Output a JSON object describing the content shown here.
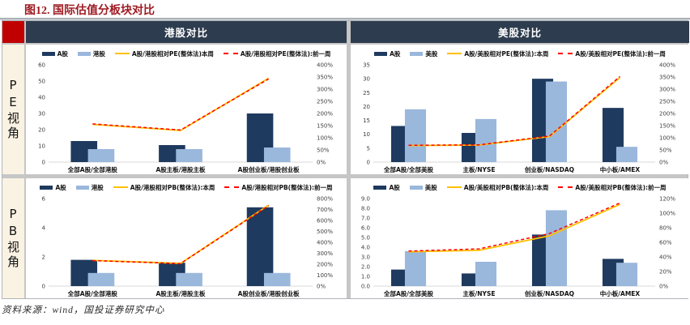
{
  "title": "图12. 国际估值分板块对比",
  "footer": "资料来源：wind，国投证券研究中心",
  "headers": {
    "left": "港股对比",
    "right": "美股对比"
  },
  "side_labels": {
    "top": "PE视角",
    "bottom": "PB视角"
  },
  "colors": {
    "a_share_bar": "#1f3a5f",
    "overseas_bar": "#9ab7dc",
    "line_current": "#ffc000",
    "line_previous": "#ff0000",
    "header_bg": "#2d3c4e",
    "accent_red": "#c00000",
    "sidebar_bg": "#faf3e3",
    "title_red": "#9e1b23"
  },
  "chart_data": [
    {
      "type": "bar",
      "panel": "pe_hk",
      "categories": [
        "全部A股/全部港股",
        "A股主板/港股主板",
        "A股创业板/港股创业板"
      ],
      "left_axis": {
        "min": 0,
        "max": 60,
        "ticks": [
          0,
          10,
          20,
          30,
          40,
          50,
          60
        ],
        "format": "int"
      },
      "right_axis": {
        "min": 0,
        "max": 400,
        "ticks": [
          0,
          50,
          100,
          150,
          200,
          250,
          300,
          350,
          400
        ],
        "format": "percent"
      },
      "series": [
        {
          "name": "A股",
          "type": "bar",
          "axis": "left",
          "color": "#1f3a5f",
          "values": [
            13,
            10.5,
            30
          ]
        },
        {
          "name": "港股",
          "type": "bar",
          "axis": "left",
          "color": "#9ab7dc",
          "values": [
            8,
            8,
            9
          ]
        },
        {
          "name": "A股/港股相对PE(整体法)本周",
          "type": "line",
          "dash": false,
          "axis": "right",
          "color": "#ffc000",
          "values": [
            155,
            130,
            345
          ]
        },
        {
          "name": "A股/港股相对PE(整体法):前一周",
          "type": "line",
          "dash": true,
          "axis": "right",
          "color": "#ff0000",
          "values": [
            157,
            132,
            342
          ]
        }
      ]
    },
    {
      "type": "bar",
      "panel": "pe_us",
      "categories": [
        "全部A股/全部美股",
        "主板/NYSE",
        "创业板/NASDAQ",
        "中小板/AMEX"
      ],
      "left_axis": {
        "min": 0,
        "max": 35,
        "ticks": [
          0,
          5,
          10,
          15,
          20,
          25,
          30,
          35
        ],
        "format": "int"
      },
      "right_axis": {
        "min": 0,
        "max": 400,
        "ticks": [
          0,
          50,
          100,
          150,
          200,
          250,
          300,
          350,
          400
        ],
        "format": "percent"
      },
      "series": [
        {
          "name": "A股",
          "type": "bar",
          "axis": "left",
          "color": "#1f3a5f",
          "values": [
            13,
            10.5,
            30,
            19.5
          ]
        },
        {
          "name": "美股",
          "type": "bar",
          "axis": "left",
          "color": "#9ab7dc",
          "values": [
            19,
            15.5,
            29,
            5.5
          ]
        },
        {
          "name": "A股/美股相对PE(整体法):本周",
          "type": "line",
          "dash": false,
          "axis": "right",
          "color": "#ffc000",
          "values": [
            68,
            70,
            105,
            348
          ]
        },
        {
          "name": "A股/美股相对PE(整体法):前一周",
          "type": "line",
          "dash": true,
          "axis": "right",
          "color": "#ff0000",
          "values": [
            69,
            71,
            107,
            352
          ]
        }
      ]
    },
    {
      "type": "bar",
      "panel": "pb_hk",
      "categories": [
        "全部A股/全部港股",
        "A股主板/港股主板",
        "A股创业板/港股创业板"
      ],
      "left_axis": {
        "min": 0,
        "max": 6,
        "ticks": [
          0,
          2,
          4,
          6
        ],
        "format": "int"
      },
      "right_axis": {
        "min": 0,
        "max": 800,
        "ticks": [
          0,
          100,
          200,
          300,
          400,
          500,
          600,
          700,
          800
        ],
        "format": "percent"
      },
      "series": [
        {
          "name": "A股",
          "type": "bar",
          "axis": "left",
          "color": "#1f3a5f",
          "values": [
            1.8,
            1.6,
            5.4
          ]
        },
        {
          "name": "港股",
          "type": "bar",
          "axis": "left",
          "color": "#9ab7dc",
          "values": [
            0.9,
            0.9,
            0.9
          ]
        },
        {
          "name": "A股/港股相对PB(整体法):本周",
          "type": "line",
          "dash": false,
          "axis": "right",
          "color": "#ffc000",
          "values": [
            235,
            208,
            740
          ]
        },
        {
          "name": "A股/港股相对PB(整体法):前一周",
          "type": "line",
          "dash": true,
          "axis": "right",
          "color": "#ff0000",
          "values": [
            233,
            206,
            735
          ]
        }
      ]
    },
    {
      "type": "bar",
      "panel": "pb_us",
      "categories": [
        "全部A股/全部美股",
        "主板/NYSE",
        "创业板/NASDAQ",
        "中小板/AMEX"
      ],
      "left_axis": {
        "min": 0,
        "max": 9,
        "ticks": [
          0,
          1,
          2,
          3,
          4,
          5,
          6,
          7,
          8,
          9
        ],
        "format": "1dp"
      },
      "right_axis": {
        "min": 0,
        "max": 120,
        "ticks": [
          0,
          20,
          40,
          60,
          80,
          100,
          120
        ],
        "format": "percent"
      },
      "series": [
        {
          "name": "A股",
          "type": "bar",
          "axis": "left",
          "color": "#1f3a5f",
          "values": [
            1.7,
            1.3,
            5.3,
            2.8
          ]
        },
        {
          "name": "美股",
          "type": "bar",
          "axis": "left",
          "color": "#9ab7dc",
          "values": [
            3.6,
            2.5,
            7.8,
            2.4
          ]
        },
        {
          "name": "A股/美股相对PB(整体法):本周",
          "type": "line",
          "dash": false,
          "axis": "right",
          "color": "#ffc000",
          "values": [
            47,
            49,
            69,
            112
          ]
        },
        {
          "name": "A股/美股相对PB(整体法):前一周",
          "type": "line",
          "dash": true,
          "axis": "right",
          "color": "#ff0000",
          "values": [
            48,
            51,
            72,
            114
          ]
        }
      ]
    }
  ]
}
